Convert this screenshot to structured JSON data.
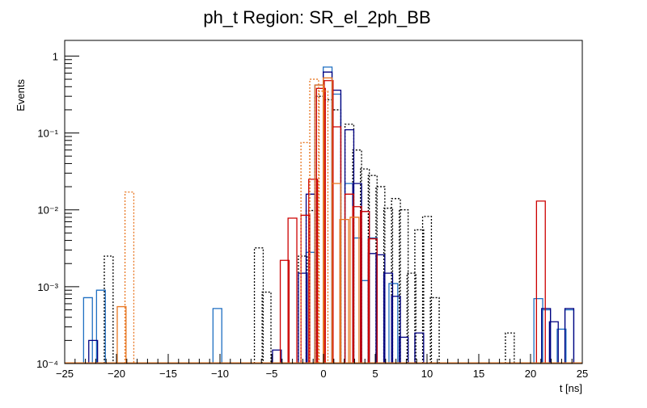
{
  "chart_data": {
    "type": "histogram",
    "title": "ph_t Region: SR_el_2ph_BB",
    "xlabel": "t [ns]",
    "ylabel": "Events",
    "xlim": [
      -25,
      25
    ],
    "ylim": [
      0.0001,
      1.6
    ],
    "yscale": "log",
    "x_ticks": [
      -25,
      -20,
      -15,
      -10,
      -5,
      0,
      5,
      10,
      15,
      20,
      25
    ],
    "x_tick_labels": [
      "−25",
      "−20",
      "−15",
      "−10",
      "−5",
      "0",
      "5",
      "10",
      "15",
      "20",
      "25"
    ],
    "y_ticks": [
      0.0001,
      0.001,
      0.01,
      0.1,
      1
    ],
    "y_tick_labels": [
      "10⁻⁴",
      "10⁻³",
      "10⁻²",
      "10⁻¹",
      "1"
    ],
    "bin_edges_start": -25,
    "bin_width": 0.85,
    "series": [
      {
        "color": "#000000",
        "style": "dotted",
        "bins": [
          {
            "x": -20.75,
            "y": 0.0025
          },
          {
            "x": -6.25,
            "y": 0.0032
          },
          {
            "x": -5.5,
            "y": 0.00085
          },
          {
            "x": -2.0,
            "y": 0.0025
          },
          {
            "x": -1.25,
            "y": 0.0098
          },
          {
            "x": -0.4,
            "y": 0.3
          },
          {
            "x": 0.4,
            "y": 0.27
          },
          {
            "x": 1.25,
            "y": 0.2
          },
          {
            "x": 2.5,
            "y": 0.13
          },
          {
            "x": 3.25,
            "y": 0.06
          },
          {
            "x": 4.0,
            "y": 0.034
          },
          {
            "x": 4.75,
            "y": 0.028
          },
          {
            "x": 5.5,
            "y": 0.02
          },
          {
            "x": 6.25,
            "y": 0.0105
          },
          {
            "x": 7.0,
            "y": 0.014
          },
          {
            "x": 7.75,
            "y": 0.01
          },
          {
            "x": 8.5,
            "y": 0.0015
          },
          {
            "x": 9.25,
            "y": 0.0055
          },
          {
            "x": 10.0,
            "y": 0.0082
          },
          {
            "x": 10.75,
            "y": 0.00072
          },
          {
            "x": 18.0,
            "y": 0.00025
          }
        ]
      },
      {
        "color": "#1f6fc2",
        "style": "solid",
        "bins": [
          {
            "x": -22.75,
            "y": 0.00072
          },
          {
            "x": -21.5,
            "y": 0.0009
          },
          {
            "x": -10.25,
            "y": 0.00052
          },
          {
            "x": -1.25,
            "y": 0.0028
          },
          {
            "x": 0.4,
            "y": 0.72
          },
          {
            "x": 1.25,
            "y": 0.32
          },
          {
            "x": 2.5,
            "y": 0.022
          },
          {
            "x": 3.25,
            "y": 0.0043
          },
          {
            "x": 4.0,
            "y": 0.0012
          },
          {
            "x": 4.75,
            "y": 0.0043
          },
          {
            "x": 6.75,
            "y": 0.0011
          },
          {
            "x": 20.75,
            "y": 0.0007
          },
          {
            "x": 21.5,
            "y": 0.0005
          },
          {
            "x": 23.0,
            "y": 0.00028
          },
          {
            "x": 23.75,
            "y": 0.0005
          }
        ]
      },
      {
        "color": "#000080",
        "style": "solid",
        "bins": [
          {
            "x": -22.25,
            "y": 0.0002
          },
          {
            "x": -4.5,
            "y": 0.00015
          },
          {
            "x": -2.0,
            "y": 0.0015
          },
          {
            "x": -1.25,
            "y": 0.016
          },
          {
            "x": -0.4,
            "y": 0.42
          },
          {
            "x": 0.4,
            "y": 0.62
          },
          {
            "x": 1.25,
            "y": 0.36
          },
          {
            "x": 2.5,
            "y": 0.11
          },
          {
            "x": 3.25,
            "y": 0.022
          },
          {
            "x": 4.0,
            "y": 0.0095
          },
          {
            "x": 4.75,
            "y": 0.0027
          },
          {
            "x": 5.5,
            "y": 0.0026
          },
          {
            "x": 6.25,
            "y": 0.0015
          },
          {
            "x": 7.0,
            "y": 0.00075
          },
          {
            "x": 7.75,
            "y": 0.00022
          },
          {
            "x": 9.25,
            "y": 0.00025
          },
          {
            "x": 21.5,
            "y": 0.00052
          },
          {
            "x": 22.25,
            "y": 0.00035
          },
          {
            "x": 23.75,
            "y": 0.00052
          }
        ]
      },
      {
        "color": "#cc0000",
        "style": "solid",
        "bins": [
          {
            "x": -3.75,
            "y": 0.0022
          },
          {
            "x": -3.0,
            "y": 0.0078
          },
          {
            "x": -1.75,
            "y": 0.0085
          },
          {
            "x": -1.0,
            "y": 0.025
          },
          {
            "x": -0.25,
            "y": 0.38
          },
          {
            "x": 0.5,
            "y": 0.48
          },
          {
            "x": 1.25,
            "y": 0.12
          },
          {
            "x": 2.5,
            "y": 0.016
          },
          {
            "x": 3.25,
            "y": 0.011
          },
          {
            "x": 4.0,
            "y": 0.0095
          },
          {
            "x": 4.75,
            "y": 0.0042
          },
          {
            "x": 21.0,
            "y": 0.013
          }
        ]
      },
      {
        "color": "#e87722",
        "style": "solid",
        "bins": [
          {
            "x": -19.5,
            "y": 0.00055
          },
          {
            "x": -0.4,
            "y": 0.42
          },
          {
            "x": 0.4,
            "y": 0.52
          },
          {
            "x": 1.25,
            "y": 0.022
          },
          {
            "x": 2.0,
            "y": 0.0075
          },
          {
            "x": 3.0,
            "y": 0.008
          }
        ]
      },
      {
        "color": "#e87722",
        "style": "dotted",
        "bins": [
          {
            "x": -18.75,
            "y": 0.017
          },
          {
            "x": -1.75,
            "y": 0.075
          },
          {
            "x": -0.9,
            "y": 0.5
          },
          {
            "x": 0.0,
            "y": 0.35
          }
        ]
      }
    ]
  }
}
